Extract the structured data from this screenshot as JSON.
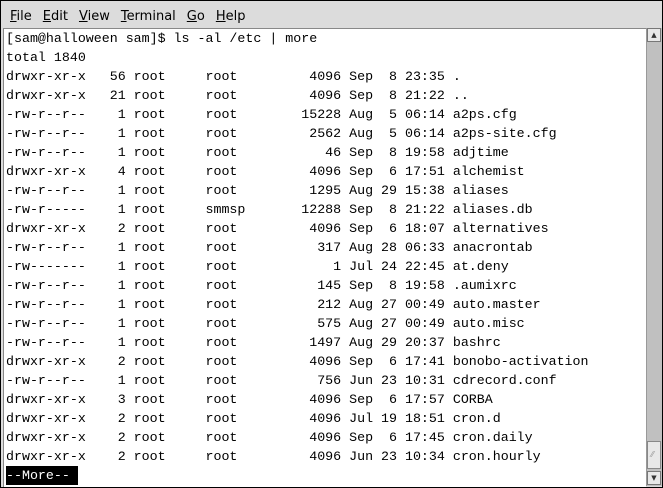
{
  "menubar": {
    "items": [
      {
        "label": "File",
        "mnemonic": "F",
        "rest": "ile"
      },
      {
        "label": "Edit",
        "mnemonic": "E",
        "rest": "dit"
      },
      {
        "label": "View",
        "mnemonic": "V",
        "rest": "iew"
      },
      {
        "label": "Terminal",
        "mnemonic": "T",
        "rest": "erminal"
      },
      {
        "label": "Go",
        "mnemonic": "G",
        "rest": "o"
      },
      {
        "label": "Help",
        "mnemonic": "H",
        "rest": "elp"
      }
    ]
  },
  "terminal": {
    "lines": [
      "[sam@halloween sam]$ ls -al /etc | more",
      "total 1840",
      "drwxr-xr-x   56 root     root         4096 Sep  8 23:35 .",
      "drwxr-xr-x   21 root     root         4096 Sep  8 21:22 ..",
      "-rw-r--r--    1 root     root        15228 Aug  5 06:14 a2ps.cfg",
      "-rw-r--r--    1 root     root         2562 Aug  5 06:14 a2ps-site.cfg",
      "-rw-r--r--    1 root     root           46 Sep  8 19:58 adjtime",
      "drwxr-xr-x    4 root     root         4096 Sep  6 17:51 alchemist",
      "-rw-r--r--    1 root     root         1295 Aug 29 15:38 aliases",
      "-rw-r-----    1 root     smmsp       12288 Sep  8 21:22 aliases.db",
      "drwxr-xr-x    2 root     root         4096 Sep  6 18:07 alternatives",
      "-rw-r--r--    1 root     root          317 Aug 28 06:33 anacrontab",
      "-rw-------    1 root     root            1 Jul 24 22:45 at.deny",
      "-rw-r--r--    1 root     root          145 Sep  8 19:58 .aumixrc",
      "-rw-r--r--    1 root     root          212 Aug 27 00:49 auto.master",
      "-rw-r--r--    1 root     root          575 Aug 27 00:49 auto.misc",
      "-rw-r--r--    1 root     root         1497 Aug 29 20:37 bashrc",
      "drwxr-xr-x    2 root     root         4096 Sep  6 17:41 bonobo-activation",
      "-rw-r--r--    1 root     root          756 Jun 23 10:31 cdrecord.conf",
      "drwxr-xr-x    3 root     root         4096 Sep  6 17:57 CORBA",
      "drwxr-xr-x    2 root     root         4096 Jul 19 18:51 cron.d",
      "drwxr-xr-x    2 root     root         4096 Sep  6 17:45 cron.daily",
      "drwxr-xr-x    2 root     root         4096 Jun 23 10:34 cron.hourly"
    ],
    "pager_prompt": "--More--"
  },
  "scrollbar": {
    "position_fraction": 0.95
  }
}
